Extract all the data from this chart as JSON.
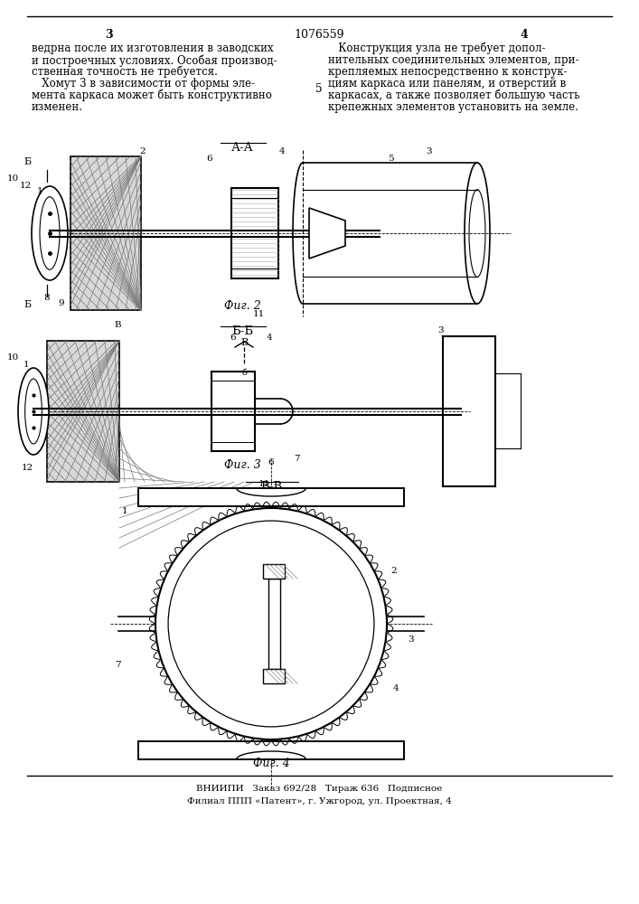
{
  "bg_color": "#ffffff",
  "page_number_left": "3",
  "page_number_right": "4",
  "patent_number": "1076559",
  "text_left_col": [
    "ведрна после их изготовления в заводских",
    "и построечных условиях. Особая производ-",
    "ственная точность не требуется.",
    "   Хомут 3 в зависимости от формы эле-",
    "мента каркаса может быть конструктивно",
    "изменен."
  ],
  "text_right_col": [
    "   Конструкция узла не требует допол-",
    "нительных соединительных элементов, при-",
    "крепляемых непосредственно к конструк-",
    "циям каркаса или панелям, и отверстий в",
    "каркасах, а также позволяет большую часть",
    "крепежных элементов установить на земле."
  ],
  "num_5": "5",
  "fig2_label": "А-А",
  "fig2_caption": "Фиг. 2",
  "fig3_label": "Б-Б",
  "fig3_caption": "Фиг. 3",
  "fig4_label": "В-В",
  "fig4_caption": "Фиг. 4",
  "footer_line1": "ВНИИПИ   Заказ 692/28   Тираж 636   Подписное",
  "footer_line2": "Филиал ППП «Патент», г. Ужгород, ул. Проектная, 4",
  "line_color": "#000000",
  "text_color": "#000000",
  "font_size_main": 8.5,
  "font_size_label": 9.5,
  "font_size_caption": 9.0,
  "font_size_footer": 7.5,
  "font_size_pagenum": 9.0
}
